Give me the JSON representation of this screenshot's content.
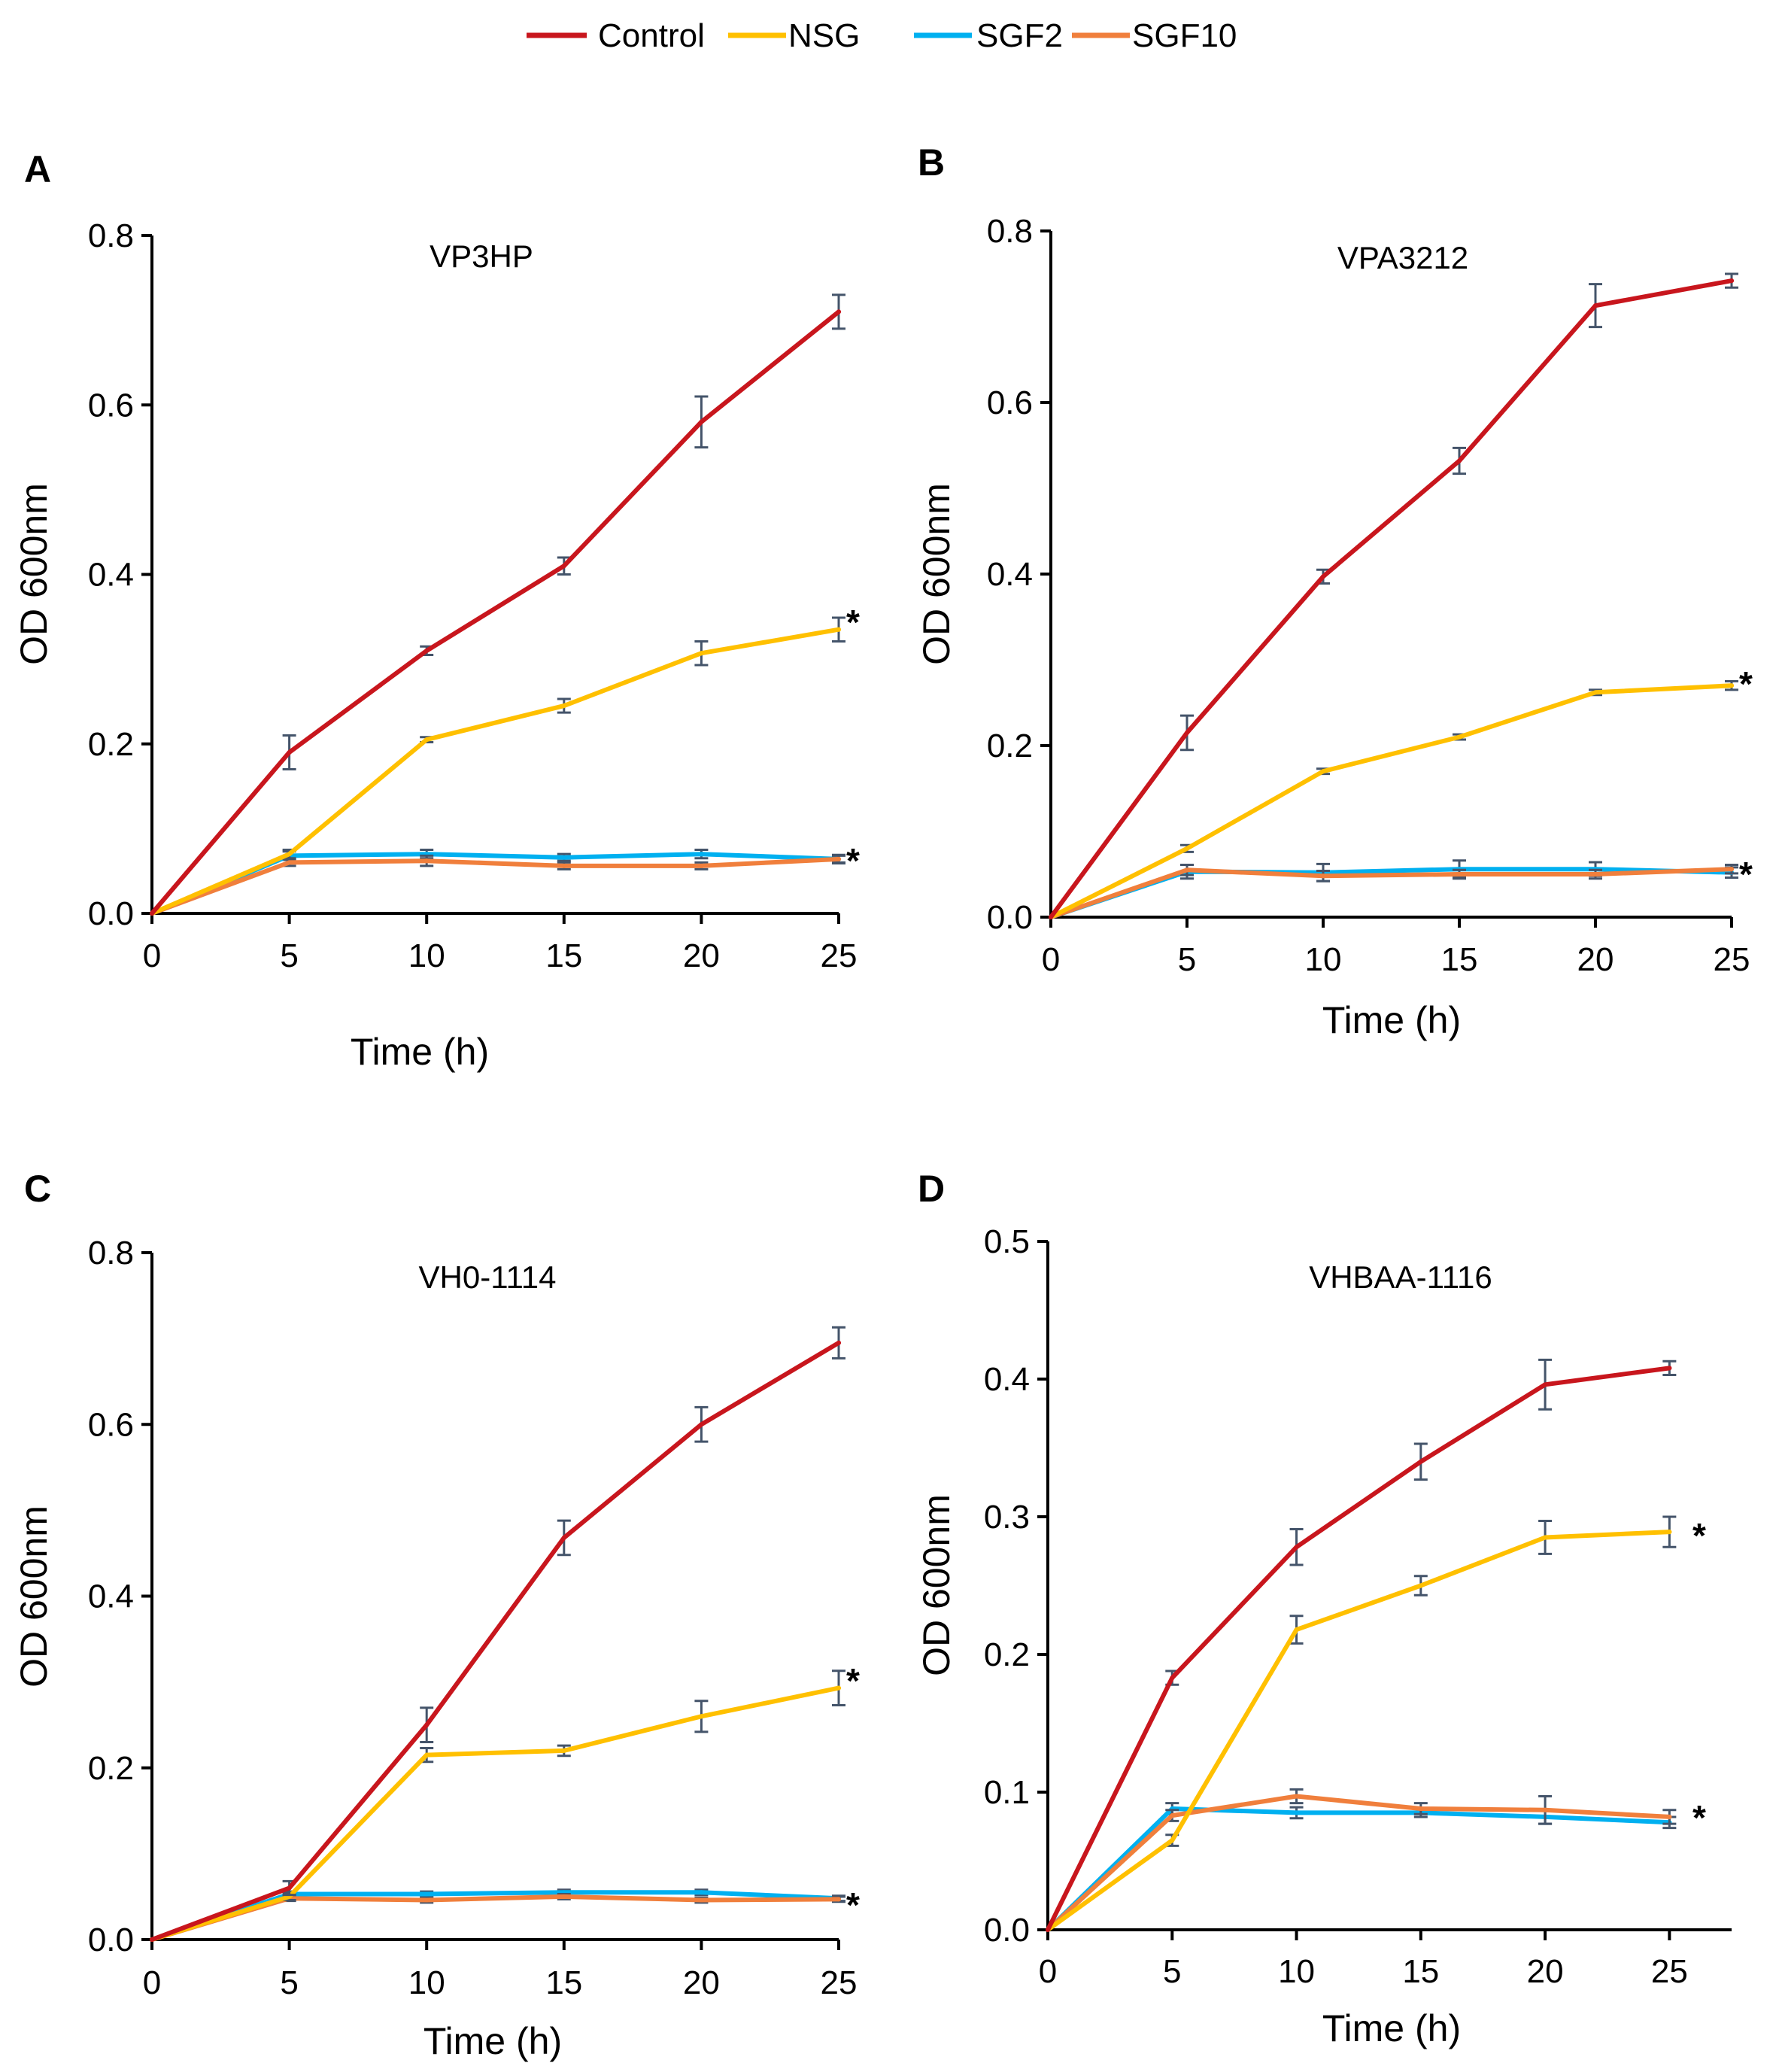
{
  "legend": {
    "entries": [
      {
        "name": "Control",
        "color": "#c8161d"
      },
      {
        "name": "NSG",
        "color": "#ffc000"
      },
      {
        "name": "SGF2",
        "color": "#00b0f0"
      },
      {
        "name": "SGF10",
        "color": "#f07f3c"
      }
    ]
  },
  "chart_data": [
    {
      "type": "line",
      "panel_label": "A",
      "title": "VP3HP",
      "xlabel": "Time (h)",
      "ylabel": "OD 600nm",
      "x": [
        0,
        5,
        10,
        15,
        20,
        25
      ],
      "xlim": [
        0,
        25
      ],
      "ylim": [
        0,
        0.8
      ],
      "xticks": [
        "0",
        "5",
        "10",
        "15",
        "20",
        "25"
      ],
      "yticks": [
        "0.0",
        "0.2",
        "0.4",
        "0.6",
        "0.8"
      ],
      "ytick_values": [
        0,
        0.2,
        0.4,
        0.6,
        0.8
      ],
      "series": [
        {
          "name": "Control",
          "values": [
            0,
            0.19,
            0.31,
            0.41,
            0.58,
            0.71
          ],
          "errors": [
            0,
            0.02,
            0.005,
            0.01,
            0.03,
            0.02
          ]
        },
        {
          "name": "NSG",
          "values": [
            0,
            0.07,
            0.205,
            0.245,
            0.307,
            0.335
          ],
          "errors": [
            0,
            0.005,
            0.003,
            0.008,
            0.014,
            0.014
          ]
        },
        {
          "name": "SGF2",
          "values": [
            0,
            0.068,
            0.07,
            0.066,
            0.07,
            0.064
          ],
          "errors": [
            0,
            0.005,
            0.005,
            0.004,
            0.005,
            0.005
          ]
        },
        {
          "name": "SGF10",
          "values": [
            0,
            0.06,
            0.062,
            0.056,
            0.056,
            0.064
          ],
          "errors": [
            0,
            0.004,
            0.006,
            0.004,
            0.004,
            0.004
          ]
        }
      ],
      "annotations": [
        "*",
        "*"
      ]
    },
    {
      "type": "line",
      "panel_label": "B",
      "title": "VPA3212",
      "xlabel": "Time (h)",
      "ylabel": "OD 600nm",
      "x": [
        0,
        5,
        10,
        15,
        20,
        25
      ],
      "xlim": [
        0,
        25
      ],
      "ylim": [
        0,
        0.8
      ],
      "xticks": [
        "0",
        "5",
        "10",
        "15",
        "20",
        "25"
      ],
      "yticks": [
        "0.0",
        "0.2",
        "0.4",
        "0.6",
        "0.8"
      ],
      "ytick_values": [
        0,
        0.2,
        0.4,
        0.6,
        0.8
      ],
      "series": [
        {
          "name": "Control",
          "values": [
            0,
            0.215,
            0.397,
            0.532,
            0.713,
            0.742
          ],
          "errors": [
            0,
            0.02,
            0.008,
            0.015,
            0.025,
            0.008
          ]
        },
        {
          "name": "NSG",
          "values": [
            0,
            0.08,
            0.17,
            0.21,
            0.262,
            0.27
          ],
          "errors": [
            0,
            0.004,
            0.003,
            0.003,
            0.003,
            0.005
          ]
        },
        {
          "name": "SGF2",
          "values": [
            0,
            0.053,
            0.052,
            0.056,
            0.056,
            0.052
          ],
          "errors": [
            0,
            0.008,
            0.01,
            0.01,
            0.008,
            0.006
          ]
        },
        {
          "name": "SGF10",
          "values": [
            0,
            0.055,
            0.048,
            0.05,
            0.05,
            0.056
          ],
          "errors": [
            0,
            0.006,
            0.006,
            0.005,
            0.005,
            0.005
          ]
        }
      ],
      "annotations": [
        "*",
        "*"
      ]
    },
    {
      "type": "line",
      "panel_label": "C",
      "title": "VH0-1114",
      "xlabel": "Time (h)",
      "ylabel": "OD 600nm",
      "x": [
        0,
        5,
        10,
        15,
        20,
        25
      ],
      "xlim": [
        0,
        25
      ],
      "ylim": [
        0,
        0.8
      ],
      "xticks": [
        "0",
        "5",
        "10",
        "15",
        "20",
        "25"
      ],
      "yticks": [
        "0.0",
        "0.2",
        "0.4",
        "0.6",
        "0.8"
      ],
      "ytick_values": [
        0,
        0.2,
        0.4,
        0.6,
        0.8
      ],
      "series": [
        {
          "name": "Control",
          "values": [
            0,
            0.06,
            0.25,
            0.468,
            0.6,
            0.695
          ],
          "errors": [
            0,
            0.008,
            0.02,
            0.02,
            0.02,
            0.018
          ]
        },
        {
          "name": "NSG",
          "values": [
            0,
            0.05,
            0.215,
            0.22,
            0.26,
            0.293
          ],
          "errors": [
            0,
            0.004,
            0.008,
            0.006,
            0.018,
            0.02
          ]
        },
        {
          "name": "SGF2",
          "values": [
            0,
            0.053,
            0.053,
            0.055,
            0.055,
            0.048
          ],
          "errors": [
            0,
            0.003,
            0.003,
            0.003,
            0.003,
            0.003
          ]
        },
        {
          "name": "SGF10",
          "values": [
            0,
            0.048,
            0.046,
            0.05,
            0.046,
            0.047
          ],
          "errors": [
            0,
            0.003,
            0.003,
            0.003,
            0.003,
            0.003
          ]
        }
      ],
      "annotations": [
        "*",
        "*"
      ]
    },
    {
      "type": "line",
      "panel_label": "D",
      "title": "VHBAA-1116",
      "xlabel": "Time (h)",
      "ylabel": "OD 600nm",
      "x": [
        0,
        5,
        10,
        15,
        20,
        25
      ],
      "xlim": [
        0,
        27.5
      ],
      "ylim": [
        0,
        0.5
      ],
      "xticks": [
        "0",
        "5",
        "10",
        "15",
        "20",
        "25"
      ],
      "yticks": [
        "0.0",
        "0.1",
        "0.2",
        "0.3",
        "0.4",
        "0.5"
      ],
      "ytick_values": [
        0,
        0.1,
        0.2,
        0.3,
        0.4,
        0.5
      ],
      "series": [
        {
          "name": "Control",
          "values": [
            0,
            0.183,
            0.278,
            0.34,
            0.396,
            0.408
          ],
          "errors": [
            0,
            0.005,
            0.013,
            0.013,
            0.018,
            0.005
          ]
        },
        {
          "name": "NSG",
          "values": [
            0,
            0.065,
            0.218,
            0.25,
            0.285,
            0.289
          ],
          "errors": [
            0,
            0.004,
            0.01,
            0.007,
            0.012,
            0.011
          ]
        },
        {
          "name": "SGF2",
          "values": [
            0,
            0.088,
            0.085,
            0.085,
            0.082,
            0.078
          ],
          "errors": [
            0,
            0.004,
            0.004,
            0.003,
            0.005,
            0.004
          ]
        },
        {
          "name": "SGF10",
          "values": [
            0,
            0.083,
            0.097,
            0.088,
            0.087,
            0.082
          ],
          "errors": [
            0,
            0.004,
            0.005,
            0.004,
            0.01,
            0.005
          ]
        }
      ],
      "annotations": [
        "*",
        "*"
      ]
    }
  ]
}
